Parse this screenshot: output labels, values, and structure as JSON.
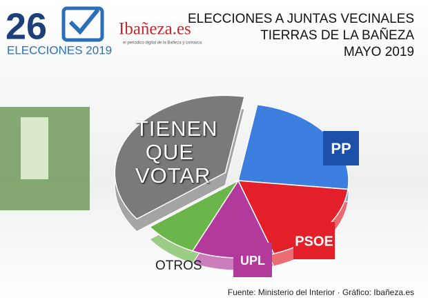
{
  "header": {
    "number": "26",
    "label": "ELECCIONES 2019",
    "site": "Ibañeza.es",
    "tagline": "el periódico digital de la Bañeza y comarca"
  },
  "chart_data": {
    "type": "pie",
    "title_lines": [
      "ELECCIONES A JUNTAS VECINALES",
      "TIERRAS DE LA BAÑEZA",
      "MAYO 2019"
    ],
    "categories": [
      "PP",
      "PSOE",
      "UPL",
      "OTROS",
      "TIENEN QUE VOTAR"
    ],
    "values": [
      24,
      18,
      12,
      8,
      38
    ],
    "colors": [
      "#3d7fe0",
      "#e3202a",
      "#b23a9a",
      "#6ab64a",
      "#7a7a7a"
    ]
  },
  "source": "Fuente: Ministerio del Interior · Gráfico: Ibañeza.es"
}
